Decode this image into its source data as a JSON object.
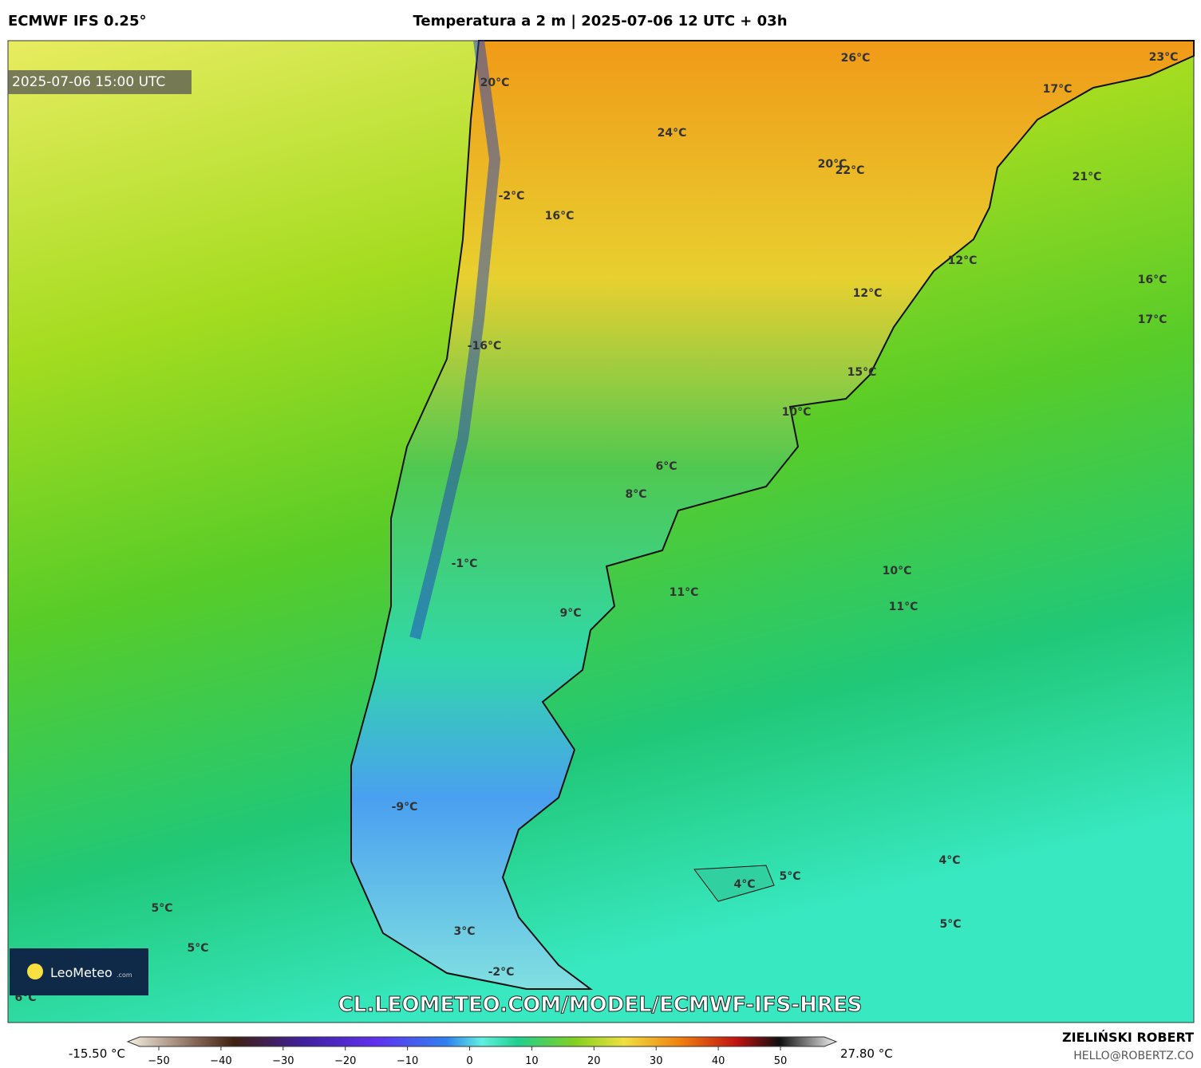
{
  "header": {
    "model": "ECMWF IFS 0.25°",
    "title": "Temperatura a 2 m | 2025-07-06 12 UTC + 03h"
  },
  "map": {
    "timestamp": "2025-07-06 15:00 UTC",
    "labels": [
      "20°C",
      "26°C",
      "23°C",
      "17°C",
      "24°C",
      "20°C",
      "22°C",
      "21°C",
      "-2°C",
      "16°C",
      "12°C",
      "16°C",
      "12°C",
      "17°C",
      "-16°C",
      "15°C",
      "10°C",
      "6°C",
      "8°C",
      "10°C",
      "-1°C",
      "11°C",
      "11°C",
      "9°C",
      "-9°C",
      "5°C",
      "4°C",
      "4°C",
      "5°C",
      "3°C",
      "5°C",
      "5°C",
      "-2°C",
      "6°C"
    ],
    "watermark": "CL.LEOMETEO.COM/MODEL/ECMWF-IFS-HRES",
    "logo": {
      "name": "LeoMeteo",
      "suffix": ".com"
    }
  },
  "colorbar": {
    "min_label": "-15.50 °C",
    "max_label": "27.80 °C",
    "ticks": [
      "−50",
      "−40",
      "−30",
      "−20",
      "−10",
      "0",
      "10",
      "20",
      "30",
      "40",
      "50"
    ]
  },
  "footer": {
    "author": "ZIELIŃSKI ROBERT",
    "email": "HELLO@ROBERTZ.CO"
  }
}
